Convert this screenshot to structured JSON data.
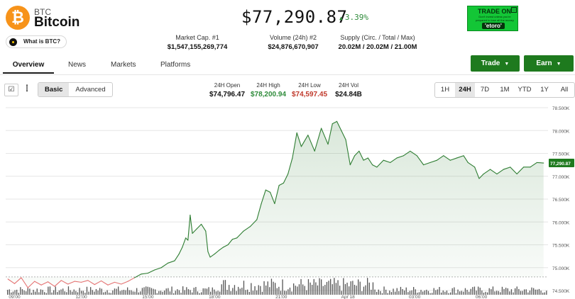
{
  "coin": {
    "symbol": "BTC",
    "name": "Bitcoin",
    "logo_glyph": "₿",
    "what_is_label": "What is BTC?"
  },
  "price": {
    "value": "$77,290.87",
    "change": "3.39%",
    "direction": "up"
  },
  "stats": [
    {
      "label": "Market Cap. #1",
      "value": "$1,547,155,269,774"
    },
    {
      "label": "Volume (24h) #2",
      "value": "$24,876,670,907"
    },
    {
      "label": "Supply (Circ. / Total / Max)",
      "value": "20.02M / 20.02M / 21.00M"
    }
  ],
  "ad": {
    "title": "TRADE ON",
    "fine_print": "Don't invest unless you're prepared to lose all the money you invest.",
    "brand": "'etoro'",
    "close": "ⓘ"
  },
  "tabs": [
    "Overview",
    "News",
    "Markets",
    "Platforms"
  ],
  "actions": {
    "trade": "Trade",
    "earn": "Earn"
  },
  "toolbar": {
    "mode_basic": "Basic",
    "mode_advanced": "Advanced"
  },
  "day_stats": [
    {
      "label": "24H Open",
      "value": "$74,796.47",
      "color": "#111111"
    },
    {
      "label": "24H High",
      "value": "$78,200.94",
      "color": "#2e8b3a"
    },
    {
      "label": "24H Low",
      "value": "$74,597.45",
      "color": "#c0392b"
    },
    {
      "label": "24H Vol",
      "value": "$24.84B",
      "color": "#111111"
    }
  ],
  "ranges": [
    "1H",
    "24H",
    "7D",
    "1M",
    "YTD",
    "1Y",
    "All"
  ],
  "colors": {
    "up": "#2e7d32",
    "down": "#e57373",
    "volume": "#555555",
    "accent": "#1e7a1e"
  },
  "chart_data": {
    "type": "line",
    "y_ticks": [
      "78.500K",
      "78.000K",
      "77.500K",
      "77.000K",
      "76.500K",
      "76.000K",
      "75.500K",
      "75.000K",
      "74.500K"
    ],
    "ylim": [
      74500,
      78500
    ],
    "x_ticks": [
      "09:00",
      "12:00",
      "15:00",
      "18:00",
      "21:00",
      "Apr 18",
      "03:00",
      "06:00"
    ],
    "x_tick_hours": [
      0,
      3,
      6,
      9,
      12,
      15,
      18,
      21
    ],
    "current_label": "77,290.87",
    "reference_value": 74796.47,
    "series": [
      {
        "values": [
          [
            -0.3,
            74750
          ],
          [
            0,
            74650
          ],
          [
            0.3,
            74780
          ],
          [
            0.6,
            74560
          ],
          [
            0.9,
            74700
          ],
          [
            1.2,
            74620
          ],
          [
            1.5,
            74690
          ],
          [
            1.8,
            74590
          ],
          [
            2.1,
            74720
          ],
          [
            2.4,
            74640
          ],
          [
            2.7,
            74700
          ],
          [
            3,
            74680
          ],
          [
            3.3,
            74720
          ],
          [
            3.6,
            74630
          ],
          [
            3.9,
            74710
          ],
          [
            4.2,
            74620
          ],
          [
            4.5,
            74680
          ],
          [
            4.8,
            74640
          ],
          [
            5.1,
            74700
          ],
          [
            5.4,
            74780
          ],
          [
            5.7,
            74860
          ],
          [
            6,
            74880
          ],
          [
            6.3,
            74950
          ],
          [
            6.6,
            75000
          ],
          [
            6.9,
            75100
          ],
          [
            7.2,
            75150
          ],
          [
            7.4,
            75300
          ],
          [
            7.55,
            75450
          ],
          [
            7.7,
            75650
          ],
          [
            7.8,
            75600
          ],
          [
            7.9,
            76150
          ],
          [
            8.0,
            75750
          ],
          [
            8.2,
            75850
          ],
          [
            8.4,
            75950
          ],
          [
            8.6,
            75800
          ],
          [
            8.7,
            75350
          ],
          [
            8.8,
            75230
          ],
          [
            9.0,
            75300
          ],
          [
            9.2,
            75380
          ],
          [
            9.4,
            75450
          ],
          [
            9.6,
            75500
          ],
          [
            9.8,
            75620
          ],
          [
            10.0,
            75650
          ],
          [
            10.3,
            75800
          ],
          [
            10.6,
            75900
          ],
          [
            10.9,
            76050
          ],
          [
            11.1,
            76400
          ],
          [
            11.3,
            76700
          ],
          [
            11.5,
            76650
          ],
          [
            11.7,
            76400
          ],
          [
            11.9,
            76800
          ],
          [
            12.1,
            76850
          ],
          [
            12.3,
            77050
          ],
          [
            12.5,
            77400
          ],
          [
            12.7,
            77950
          ],
          [
            12.9,
            77650
          ],
          [
            13.2,
            77900
          ],
          [
            13.5,
            77550
          ],
          [
            13.8,
            78050
          ],
          [
            14.1,
            77700
          ],
          [
            14.3,
            78150
          ],
          [
            14.5,
            78200
          ],
          [
            14.7,
            78000
          ],
          [
            14.9,
            77800
          ],
          [
            15.1,
            77250
          ],
          [
            15.3,
            77450
          ],
          [
            15.5,
            77550
          ],
          [
            15.7,
            77350
          ],
          [
            15.9,
            77400
          ],
          [
            16.1,
            77250
          ],
          [
            16.3,
            77200
          ],
          [
            16.6,
            77350
          ],
          [
            16.9,
            77300
          ],
          [
            17.2,
            77400
          ],
          [
            17.5,
            77450
          ],
          [
            17.8,
            77550
          ],
          [
            18.1,
            77450
          ],
          [
            18.4,
            77250
          ],
          [
            18.7,
            77300
          ],
          [
            19.0,
            77350
          ],
          [
            19.3,
            77450
          ],
          [
            19.6,
            77350
          ],
          [
            19.9,
            77400
          ],
          [
            20.2,
            77450
          ],
          [
            20.4,
            77300
          ],
          [
            20.7,
            77200
          ],
          [
            20.9,
            76950
          ],
          [
            21.1,
            77050
          ],
          [
            21.4,
            77150
          ],
          [
            21.7,
            77050
          ],
          [
            22.0,
            77150
          ],
          [
            22.3,
            77200
          ],
          [
            22.6,
            77050
          ],
          [
            22.9,
            77200
          ],
          [
            23.2,
            77200
          ],
          [
            23.5,
            77300
          ],
          [
            23.8,
            77290
          ]
        ]
      }
    ],
    "volume_note": "volume bars shown along bottom of plot"
  }
}
